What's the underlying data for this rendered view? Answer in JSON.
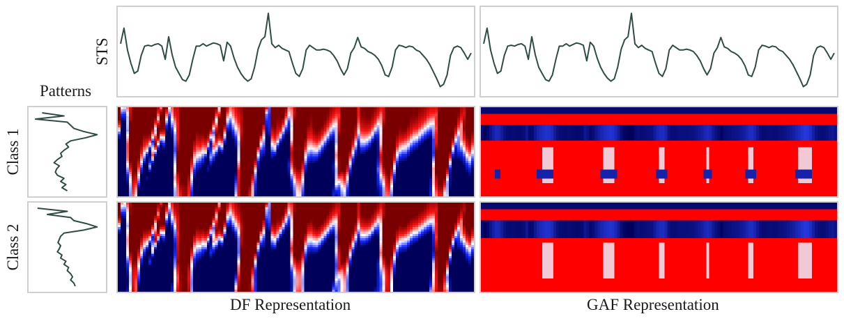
{
  "labels": {
    "sts": "STS",
    "patterns": "Patterns",
    "class1": "Class 1",
    "class2": "Class 2",
    "df": "DF Representation",
    "gaf": "GAF Representation"
  },
  "colors": {
    "line": "#2f4b46",
    "border": "#cfcfcf",
    "df_low": "#00005a",
    "df_mid": "#ffffff",
    "df_high": "#7a0000",
    "gaf_low": "#00005a",
    "gaf_high": "#ff0000"
  },
  "chart_data": [
    {
      "type": "line",
      "panel": "sts-left",
      "x": [
        0,
        5,
        10,
        15,
        20,
        25,
        30,
        35,
        40,
        45,
        50,
        55,
        60,
        65,
        70,
        75,
        80,
        85,
        90,
        95,
        100,
        105,
        110,
        115,
        120,
        125,
        130,
        135,
        140,
        145,
        150,
        155,
        160,
        165,
        170,
        175,
        180,
        185,
        190,
        195,
        200,
        205,
        210,
        215,
        220,
        225,
        230,
        235,
        240,
        245,
        250,
        255,
        260,
        265,
        270,
        275,
        280,
        285,
        290,
        295,
        300,
        305,
        310,
        315,
        320,
        325,
        330,
        335,
        340,
        345,
        350,
        355,
        360,
        365,
        370,
        375,
        380,
        385,
        390,
        395,
        400,
        405,
        410,
        415,
        420,
        425,
        430,
        435,
        440,
        445,
        450,
        455,
        460,
        465,
        470,
        475,
        480,
        485,
        490,
        495,
        500,
        505,
        510
      ],
      "y": [
        0.6,
        0.8,
        0.52,
        0.35,
        0.22,
        0.25,
        0.45,
        0.57,
        0.58,
        0.57,
        0.59,
        0.6,
        0.57,
        0.4,
        0.69,
        0.46,
        0.3,
        0.22,
        0.14,
        0.12,
        0.2,
        0.4,
        0.57,
        0.57,
        0.6,
        0.57,
        0.59,
        0.61,
        0.6,
        0.58,
        0.38,
        0.62,
        0.57,
        0.42,
        0.3,
        0.22,
        0.16,
        0.12,
        0.15,
        0.3,
        0.53,
        0.65,
        0.69,
        0.99,
        0.6,
        0.55,
        0.58,
        0.54,
        0.52,
        0.5,
        0.35,
        0.22,
        0.18,
        0.28,
        0.52,
        0.58,
        0.55,
        0.52,
        0.52,
        0.53,
        0.52,
        0.5,
        0.45,
        0.38,
        0.28,
        0.2,
        0.28,
        0.48,
        0.55,
        0.68,
        0.56,
        0.54,
        0.5,
        0.48,
        0.45,
        0.4,
        0.32,
        0.2,
        0.18,
        0.3,
        0.52,
        0.58,
        0.57,
        0.55,
        0.57,
        0.56,
        0.52,
        0.5,
        0.45,
        0.4,
        0.33,
        0.24,
        0.15,
        0.05,
        0.08,
        0.2,
        0.45,
        0.55,
        0.57,
        0.55,
        0.48,
        0.4,
        0.48
      ],
      "xlim": [
        0,
        510
      ],
      "ylim": [
        0,
        1
      ],
      "grid": false
    },
    {
      "type": "line",
      "panel": "sts-right",
      "x": [
        0,
        5,
        10,
        15,
        20,
        25,
        30,
        35,
        40,
        45,
        50,
        55,
        60,
        65,
        70,
        75,
        80,
        85,
        90,
        95,
        100,
        105,
        110,
        115,
        120,
        125,
        130,
        135,
        140,
        145,
        150,
        155,
        160,
        165,
        170,
        175,
        180,
        185,
        190,
        195,
        200,
        205,
        210,
        215,
        220,
        225,
        230,
        235,
        240,
        245,
        250,
        255,
        260,
        265,
        270,
        275,
        280,
        285,
        290,
        295,
        300,
        305,
        310,
        315,
        320,
        325,
        330,
        335,
        340,
        345,
        350,
        355,
        360,
        365,
        370,
        375,
        380,
        385,
        390,
        395,
        400,
        405,
        410,
        415,
        420,
        425,
        430,
        435,
        440,
        445,
        450,
        455,
        460,
        465,
        470,
        475,
        480,
        485,
        490,
        495,
        500,
        505,
        510
      ],
      "y": [
        0.6,
        0.8,
        0.52,
        0.35,
        0.22,
        0.25,
        0.45,
        0.57,
        0.58,
        0.57,
        0.59,
        0.6,
        0.57,
        0.4,
        0.69,
        0.46,
        0.3,
        0.22,
        0.14,
        0.12,
        0.2,
        0.4,
        0.57,
        0.57,
        0.6,
        0.57,
        0.59,
        0.61,
        0.6,
        0.58,
        0.38,
        0.62,
        0.57,
        0.42,
        0.3,
        0.22,
        0.16,
        0.12,
        0.15,
        0.3,
        0.53,
        0.65,
        0.69,
        0.99,
        0.6,
        0.55,
        0.58,
        0.54,
        0.52,
        0.5,
        0.35,
        0.22,
        0.18,
        0.28,
        0.52,
        0.58,
        0.55,
        0.52,
        0.52,
        0.53,
        0.52,
        0.5,
        0.45,
        0.38,
        0.28,
        0.2,
        0.28,
        0.48,
        0.55,
        0.68,
        0.56,
        0.54,
        0.5,
        0.48,
        0.45,
        0.4,
        0.32,
        0.2,
        0.18,
        0.3,
        0.52,
        0.58,
        0.57,
        0.55,
        0.57,
        0.56,
        0.52,
        0.5,
        0.45,
        0.4,
        0.33,
        0.24,
        0.15,
        0.05,
        0.08,
        0.2,
        0.45,
        0.55,
        0.57,
        0.55,
        0.48,
        0.4,
        0.48
      ],
      "xlim": [
        0,
        510
      ],
      "ylim": [
        0,
        1
      ],
      "grid": false
    },
    {
      "type": "line",
      "panel": "pattern-class-1",
      "orientation": "vertical",
      "t": [
        0,
        4,
        8,
        12,
        16,
        20,
        24,
        28,
        32,
        36,
        40,
        44,
        48,
        52,
        56,
        60,
        64,
        68,
        72,
        76,
        80,
        84,
        88,
        92,
        96,
        100
      ],
      "v": [
        0.12,
        0.45,
        0.02,
        0.5,
        0.55,
        0.6,
        0.75,
        0.95,
        0.78,
        0.55,
        0.48,
        0.52,
        0.45,
        0.4,
        0.42,
        0.35,
        0.3,
        0.38,
        0.34,
        0.32,
        0.35,
        0.45,
        0.4,
        0.48,
        0.42,
        0.5
      ],
      "tlim": [
        0,
        100
      ],
      "vlim": [
        0,
        1
      ]
    },
    {
      "type": "line",
      "panel": "pattern-class-2",
      "orientation": "vertical",
      "t": [
        0,
        4,
        8,
        12,
        16,
        20,
        24,
        28,
        32,
        36,
        40,
        44,
        48,
        52,
        56,
        60,
        64,
        68,
        72,
        76,
        80,
        84,
        88,
        92,
        96,
        100
      ],
      "v": [
        0.05,
        0.5,
        0.2,
        0.55,
        0.6,
        0.8,
        0.95,
        0.75,
        0.45,
        0.4,
        0.38,
        0.36,
        0.4,
        0.38,
        0.35,
        0.42,
        0.4,
        0.48,
        0.45,
        0.52,
        0.5,
        0.55,
        0.58,
        0.55,
        0.6,
        0.62
      ],
      "tlim": [
        0,
        100
      ],
      "vlim": [
        0,
        1
      ]
    },
    {
      "type": "heatmap",
      "panel": "df-class-1",
      "colormap": "seismic",
      "rows": 40,
      "cols": 128,
      "value_range": [
        -1,
        1
      ]
    },
    {
      "type": "heatmap",
      "panel": "df-class-2",
      "colormap": "seismic",
      "rows": 40,
      "cols": 128,
      "value_range": [
        -1,
        1
      ]
    },
    {
      "type": "heatmap",
      "panel": "gaf-class-1",
      "colormap": "blue-red",
      "rows": 40,
      "cols": 128,
      "value_range": [
        -1,
        1
      ]
    },
    {
      "type": "heatmap",
      "panel": "gaf-class-2",
      "colormap": "blue-red",
      "rows": 40,
      "cols": 128,
      "value_range": [
        -1,
        1
      ]
    }
  ]
}
